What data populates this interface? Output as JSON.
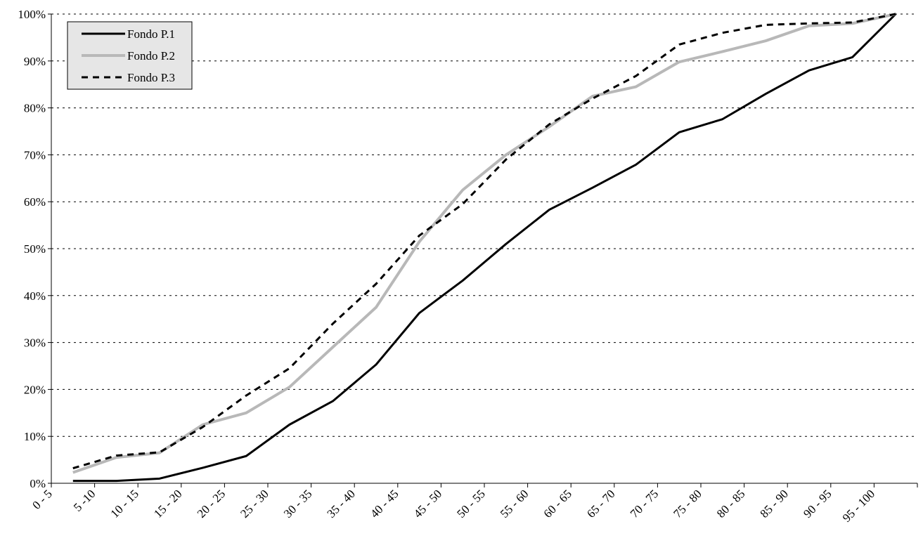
{
  "chart_data": {
    "type": "line",
    "categories": [
      "0 - 5",
      "5 -10",
      "10 - 15",
      "15 - 20",
      "20 - 25",
      "25 - 30",
      "30 - 35",
      "35 - 40",
      "40 - 45",
      "45 - 50",
      "50 - 55",
      "55 - 60",
      "60 - 65",
      "65 - 70",
      "70 - 75",
      "75 - 80",
      "80 - 85",
      "85 - 90",
      "90 - 95",
      "95 - 100"
    ],
    "series": [
      {
        "name": "Fondo P.1",
        "color": "#000000",
        "dash": "solid",
        "values": [
          0.5,
          0.5,
          1,
          3.3,
          5.8,
          12.5,
          17.5,
          25.3,
          36.3,
          43.2,
          51,
          58.3,
          63,
          67.9,
          74.8,
          77.6,
          83,
          88,
          90.8,
          100
        ]
      },
      {
        "name": "Fondo P.2",
        "color": "#b8b8b8",
        "dash": "solid",
        "values": [
          2.3,
          5.5,
          6.5,
          12.5,
          15,
          20.5,
          29,
          37.5,
          51.5,
          62.5,
          70,
          76,
          82.5,
          84.5,
          89.8,
          92,
          94.3,
          97.5,
          98,
          100
        ]
      },
      {
        "name": "Fondo P.3",
        "color": "#000000",
        "dash": "dashed",
        "values": [
          3.2,
          5.9,
          6.6,
          12,
          18.7,
          24.5,
          34,
          42.5,
          52.8,
          59.5,
          69,
          76.5,
          82,
          86.8,
          93.5,
          96,
          97.7,
          98,
          98.2,
          100
        ]
      }
    ],
    "ylim": [
      0,
      100
    ],
    "yticks": [
      {
        "value": 0,
        "label": "0%"
      },
      {
        "value": 10,
        "label": "10%"
      },
      {
        "value": 20,
        "label": "20%"
      },
      {
        "value": 30,
        "label": "30%"
      },
      {
        "value": 40,
        "label": "40%"
      },
      {
        "value": 50,
        "label": "50%"
      },
      {
        "value": 60,
        "label": "60%"
      },
      {
        "value": 70,
        "label": "70%"
      },
      {
        "value": 80,
        "label": "80%"
      },
      {
        "value": 90,
        "label": "90%"
      },
      {
        "value": 100,
        "label": "100%"
      }
    ],
    "grid": true,
    "legend": "top-left"
  }
}
